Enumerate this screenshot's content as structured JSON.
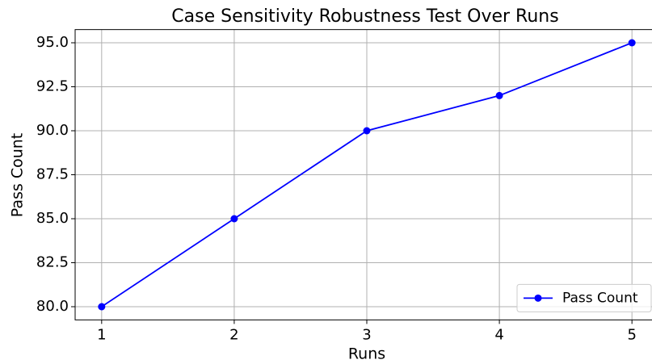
{
  "chart_data": {
    "type": "line",
    "title": "Case Sensitivity Robustness Test Over Runs",
    "xlabel": "Runs",
    "ylabel": "Pass Count",
    "x": [
      1,
      2,
      3,
      4,
      5
    ],
    "series": [
      {
        "name": "Pass Count",
        "color": "#0000ff",
        "values": [
          80,
          85,
          90,
          92,
          95
        ]
      }
    ],
    "xlim": [
      0.8,
      5.2
    ],
    "xticks": [
      1,
      2,
      3,
      4,
      5
    ],
    "ylim": [
      79.25,
      95.75
    ],
    "yticks": [
      {
        "value": 80,
        "label": "80.0"
      },
      82.5,
      {
        "value": 85,
        "label": "85.0"
      },
      87.5,
      {
        "value": 90,
        "label": "90.0"
      },
      92.5,
      {
        "value": 95,
        "label": "95.0"
      }
    ],
    "grid": true,
    "legend": "lower right",
    "marker": "o"
  }
}
